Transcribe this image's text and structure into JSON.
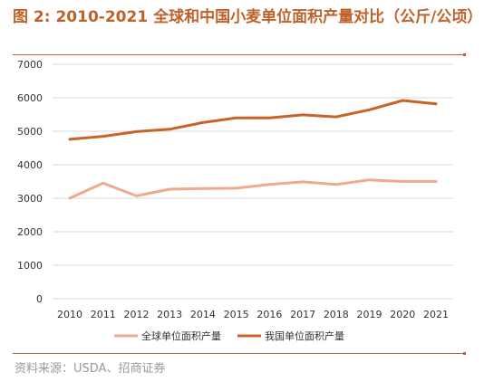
{
  "figure": {
    "title": "图 2:  2010-2021 全球和中国小麦单位面积产量对比（公斤/公顷）",
    "source": "资料来源：USDA、招商证券"
  },
  "colors": {
    "accent": "#c0602a",
    "global_series": "#f0a98a",
    "china_series": "#c86428",
    "grid": "#d9d9d9"
  },
  "chart_data": {
    "type": "line",
    "title": "图 2:  2010-2021 全球和中国小麦单位面积产量对比（公斤/公顷）",
    "xlabel": "",
    "ylabel": "",
    "x": [
      "2010",
      "2011",
      "2012",
      "2013",
      "2014",
      "2015",
      "2016",
      "2017",
      "2018",
      "2019",
      "2020",
      "2021"
    ],
    "ylim": [
      0,
      7000
    ],
    "yticks": [
      0,
      1000,
      2000,
      3000,
      4000,
      5000,
      6000,
      7000
    ],
    "grid": true,
    "legend_position": "bottom",
    "series": [
      {
        "name": "全球单位面积产量",
        "color": "#f0a98a",
        "values": [
          3000,
          3450,
          3070,
          3270,
          3290,
          3300,
          3410,
          3490,
          3410,
          3550,
          3500,
          3500
        ]
      },
      {
        "name": "我国单位面积产量",
        "color": "#c86428",
        "values": [
          4760,
          4850,
          4990,
          5060,
          5260,
          5400,
          5400,
          5490,
          5430,
          5640,
          5920,
          5820
        ]
      }
    ]
  }
}
